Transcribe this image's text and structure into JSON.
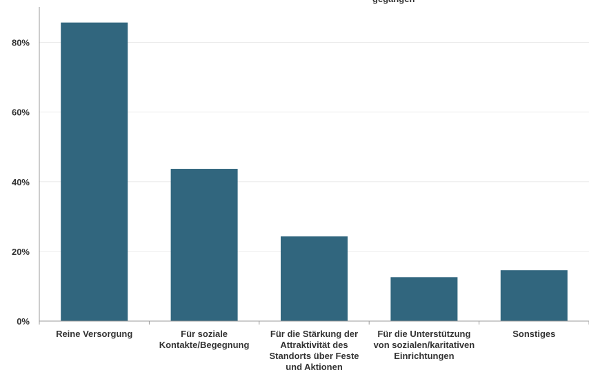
{
  "chart_data": {
    "type": "bar",
    "title_fragment": "gegangen",
    "categories": [
      [
        "Reine Versorgung"
      ],
      [
        "Für soziale",
        "Kontakte/Begegnung"
      ],
      [
        "Für die Stärkung der",
        "Attraktivität des",
        "Standorts über Feste",
        "und Aktionen"
      ],
      [
        "Für die Unterstützung",
        "von sozialen/karitativen",
        "Einrichtungen"
      ],
      [
        "Sonstiges"
      ]
    ],
    "values": [
      85.7,
      43.7,
      24.3,
      12.6,
      14.6
    ],
    "y_ticks": [
      "0%",
      "20%",
      "40%",
      "60%",
      "80%"
    ],
    "y_tick_values": [
      0,
      20,
      40,
      60,
      80
    ],
    "ylim": [
      0,
      90
    ],
    "bar_color": "#31667e",
    "grid": true,
    "legend": "none"
  }
}
